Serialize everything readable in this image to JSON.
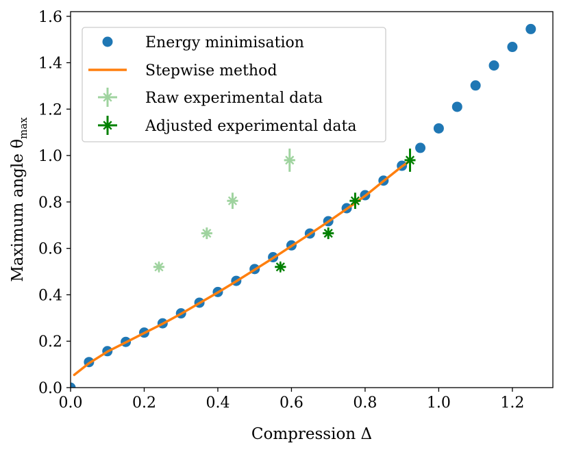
{
  "chart_data": {
    "type": "scatter",
    "title": "",
    "xlabel": "Compression Δ",
    "ylabel": "Maximum angle θmax",
    "ylabel_parts": {
      "main": "Maximum angle θ",
      "sub": "max"
    },
    "xlim": [
      0.0,
      1.31
    ],
    "ylim": [
      0.0,
      1.62
    ],
    "xticks": [
      "0.0",
      "0.2",
      "0.4",
      "0.6",
      "0.8",
      "1.0",
      "1.2"
    ],
    "yticks": [
      "0.0",
      "0.2",
      "0.4",
      "0.6",
      "0.8",
      "1.0",
      "1.2",
      "1.4",
      "1.6"
    ],
    "grid": false,
    "legend_position": "top-left",
    "series": [
      {
        "name": "Energy minimisation",
        "kind": "markers",
        "color": "#1f77b4",
        "x": [
          0.0,
          0.05,
          0.1,
          0.15,
          0.2,
          0.25,
          0.3,
          0.35,
          0.4,
          0.45,
          0.5,
          0.55,
          0.6,
          0.65,
          0.7,
          0.75,
          0.8,
          0.85,
          0.9,
          0.95,
          1.0,
          1.05,
          1.1,
          1.15,
          1.2,
          1.25
        ],
        "y": [
          0.0,
          0.11,
          0.157,
          0.197,
          0.237,
          0.277,
          0.32,
          0.366,
          0.412,
          0.46,
          0.511,
          0.562,
          0.613,
          0.664,
          0.717,
          0.773,
          0.829,
          0.892,
          0.956,
          1.033,
          1.117,
          1.21,
          1.302,
          1.388,
          1.468,
          1.545
        ]
      },
      {
        "name": "Stepwise method",
        "kind": "line",
        "color": "#ff7f0e",
        "x": [
          0.01,
          0.05,
          0.1,
          0.15,
          0.2,
          0.25,
          0.3,
          0.35,
          0.4,
          0.45,
          0.5,
          0.55,
          0.6,
          0.65,
          0.7,
          0.75,
          0.8,
          0.85,
          0.9,
          0.92
        ],
        "y": [
          0.055,
          0.105,
          0.155,
          0.195,
          0.235,
          0.275,
          0.318,
          0.364,
          0.41,
          0.458,
          0.508,
          0.558,
          0.61,
          0.662,
          0.715,
          0.77,
          0.826,
          0.89,
          0.953,
          0.975
        ]
      },
      {
        "name": "Raw experimental data",
        "kind": "errorbar",
        "color": "#2ca02c",
        "opacity": 0.45,
        "x": [
          0.24,
          0.37,
          0.44,
          0.595
        ],
        "y": [
          0.52,
          0.665,
          0.805,
          0.98
        ],
        "xerr": [
          0.013,
          0.013,
          0.013,
          0.013
        ],
        "yerr": [
          0.012,
          0.025,
          0.035,
          0.05
        ]
      },
      {
        "name": "Adjusted experimental data",
        "kind": "errorbar",
        "color": "#008000",
        "opacity": 1.0,
        "x": [
          0.57,
          0.7,
          0.773,
          0.922
        ],
        "y": [
          0.52,
          0.665,
          0.805,
          0.98
        ],
        "xerr": [
          0.013,
          0.013,
          0.013,
          0.013
        ],
        "yerr": [
          0.012,
          0.025,
          0.035,
          0.05
        ]
      }
    ]
  }
}
